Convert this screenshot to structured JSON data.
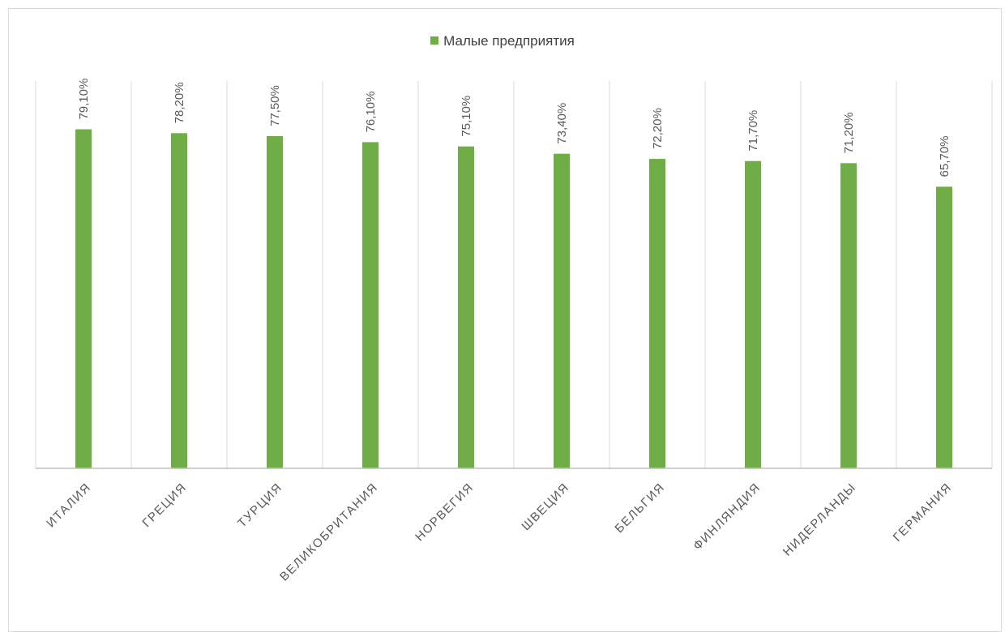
{
  "chart_data": {
    "type": "bar",
    "categories": [
      "ИТАЛИЯ",
      "ГРЕЦИЯ",
      "ТУРЦИЯ",
      "ВЕЛИКОБРИТАНИЯ",
      "НОРВЕГИЯ",
      "ШВЕЦИЯ",
      "БЕЛЬГИЯ",
      "ФИНЛЯНДИЯ",
      "НИДЕРЛАНДЫ",
      "ГЕРМАНИЯ"
    ],
    "series": [
      {
        "name": "Малые предприятия",
        "color": "#70ad47",
        "values": [
          79.1,
          78.2,
          77.5,
          76.1,
          75.1,
          73.4,
          72.2,
          71.7,
          71.2,
          65.7
        ],
        "data_labels": [
          "79,10%",
          "78,20%",
          "77,50%",
          "76,10%",
          "75,10%",
          "73,40%",
          "72,20%",
          "71,70%",
          "71,20%",
          "65,70%"
        ]
      }
    ],
    "title": "",
    "xlabel": "",
    "ylabel": "",
    "ylim": [
      0,
      100
    ],
    "vertical_gridlines": true,
    "legend_position": "top",
    "data_labels_rotated": true,
    "tick_labels_rotated": true
  }
}
